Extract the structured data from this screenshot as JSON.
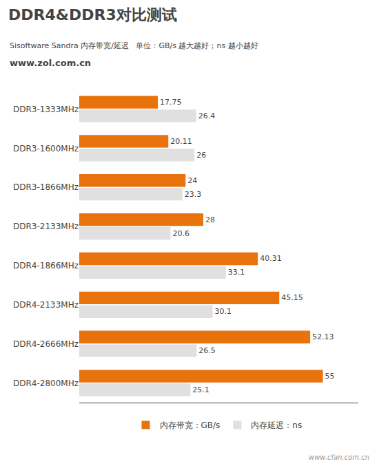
{
  "chart_data": {
    "type": "bar",
    "orientation": "horizontal",
    "title": "DDR4&DDR3对比测试",
    "subtitle": "Sisoftware Sandra 内存带宽/延迟   单位：GB/s 越大越好；ns 越小越好",
    "annotations": [
      "www.zol.com.cn",
      "www.cfan.com.cn"
    ],
    "categories": [
      "DDR3-1333MHz",
      "DDR3-1600MHz",
      "DDR3-1866MHz",
      "DDR3-2133MHz",
      "DDR4-1866MHz",
      "DDR4-2133MHz",
      "DDR4-2666MHz",
      "DDR4-2800MHz"
    ],
    "series": [
      {
        "name": "内存带宽：GB/s",
        "color": "#E8720C",
        "values": [
          17.75,
          20.11,
          24,
          28,
          40.31,
          45.15,
          52.13,
          55
        ]
      },
      {
        "name": "内存延迟：ns",
        "color": "#E0E0E0",
        "values": [
          26.4,
          26,
          23.3,
          20.6,
          33.1,
          30.1,
          26.5,
          25.1
        ]
      }
    ],
    "xlim": [
      0,
      63
    ],
    "data_labels": true,
    "tick_labels": "y",
    "grid": false,
    "legend": "bottom"
  }
}
